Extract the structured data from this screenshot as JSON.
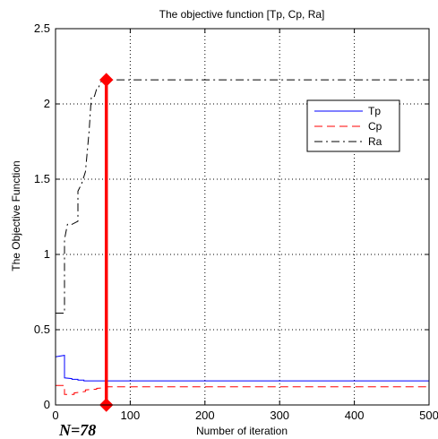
{
  "chart_data": {
    "type": "line",
    "title": "The objective function [Tp, Cp, Ra]",
    "xlabel": "Number of iteration",
    "ylabel": "The Objective Function",
    "xlim": [
      0,
      500
    ],
    "ylim": [
      0,
      2.5
    ],
    "xticks": [
      0,
      100,
      200,
      300,
      400,
      500
    ],
    "xtick_labels": [
      "0",
      "100",
      "200",
      "300",
      "400",
      "500"
    ],
    "yticks": [
      0,
      0.5,
      1,
      1.5,
      2,
      2.5
    ],
    "ytick_labels": [
      "0",
      "0.5",
      "1",
      "1.5",
      "2",
      "2.5"
    ],
    "grid": true,
    "legend_position": "top-right",
    "series": [
      {
        "name": "Tp",
        "color": "#0000ff",
        "style": "solid",
        "x": [
          0,
          12,
          12,
          22,
          22,
          30,
          30,
          38,
          38,
          68,
          68,
          500
        ],
        "y": [
          0.32,
          0.33,
          0.18,
          0.175,
          0.17,
          0.17,
          0.165,
          0.165,
          0.16,
          0.16,
          0.16,
          0.16
        ]
      },
      {
        "name": "Cp",
        "color": "#ff0000",
        "style": "dashed",
        "x": [
          0,
          12,
          12,
          25,
          25,
          40,
          40,
          55,
          55,
          68,
          68,
          500
        ],
        "y": [
          0.13,
          0.13,
          0.07,
          0.07,
          0.08,
          0.09,
          0.1,
          0.105,
          0.11,
          0.115,
          0.12,
          0.12
        ]
      },
      {
        "name": "Ra",
        "color": "#000000",
        "style": "dashdot",
        "x": [
          0,
          12,
          12,
          16,
          22,
          30,
          30,
          35,
          40,
          45,
          48,
          52,
          55,
          57,
          60,
          63,
          68,
          500
        ],
        "y": [
          0.61,
          0.61,
          1.1,
          1.2,
          1.2,
          1.22,
          1.42,
          1.47,
          1.55,
          1.82,
          2.05,
          2.05,
          2.1,
          2.1,
          2.14,
          2.16,
          2.16,
          2.16
        ]
      }
    ],
    "marker_line": {
      "color": "#ff0000",
      "x": 68,
      "y_bottom": 0,
      "y_top": 2.16
    },
    "annotation": "N=78"
  }
}
